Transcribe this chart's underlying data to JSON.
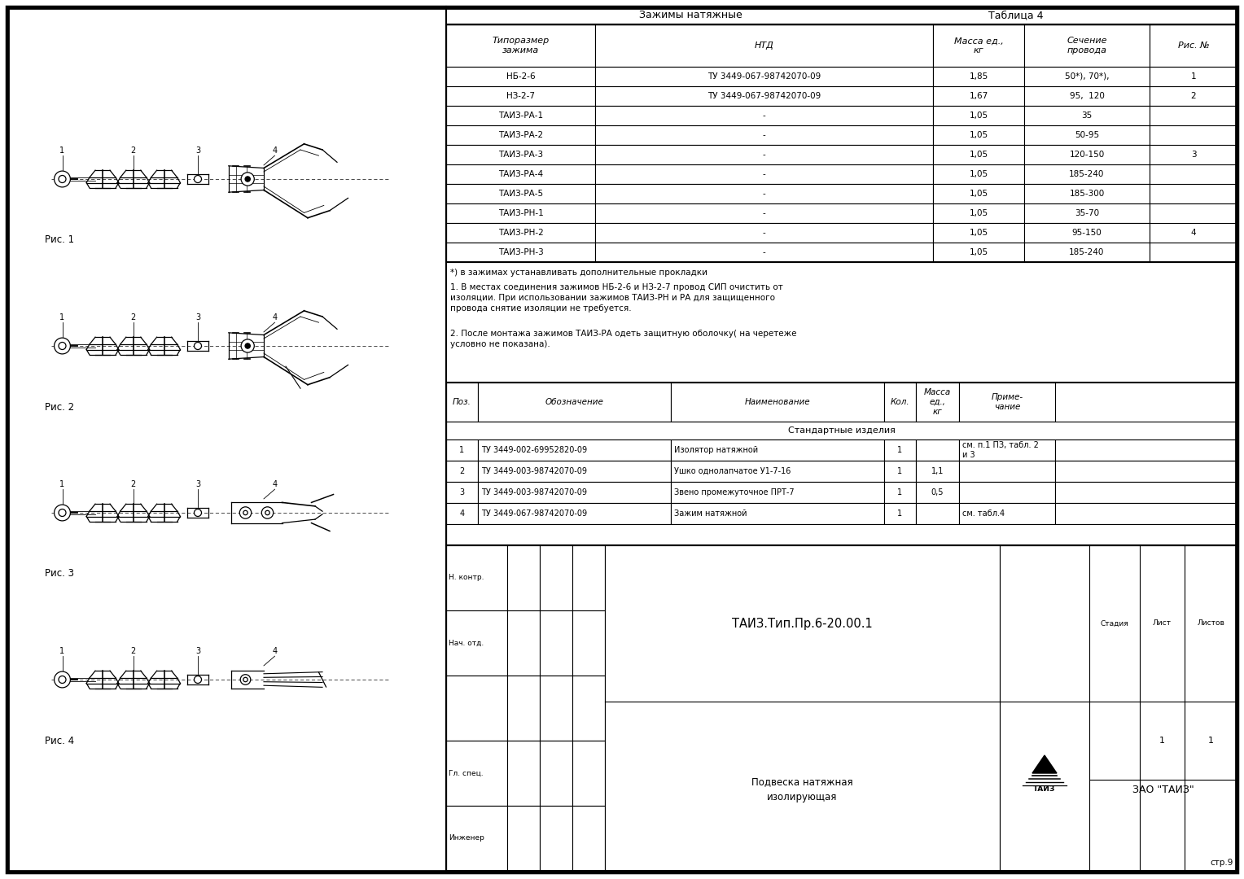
{
  "title1": "Зажимы натяжные",
  "title2": "Таблица 4",
  "table1_headers": [
    "Типоразмер\nзажима",
    "НТД",
    "Масса ед.,\nкг",
    "Сечение\nпровода",
    "Рис. №"
  ],
  "table1_rows": [
    [
      "НБ-2-6",
      "ТУ 3449-067-98742070-09",
      "1,85",
      "50*), 70*),\n95,  120",
      "1\n2"
    ],
    [
      "ТАИЗ-РА-1",
      "-",
      "1,05",
      "35",
      ""
    ],
    [
      "ТАИЗ-РА-2",
      "-",
      "1,05",
      "50-95",
      ""
    ],
    [
      "ТАИЗ-РА-3",
      "-",
      "1,05",
      "120-150",
      "3"
    ],
    [
      "ТАИЗ-РА-4",
      "-",
      "1,05",
      "185-240",
      ""
    ],
    [
      "ТАИЗ-РА-5",
      "-",
      "1,05",
      "185-300",
      ""
    ],
    [
      "ТАИЗ-РН-1",
      "-",
      "1,05",
      "35-70",
      ""
    ],
    [
      "ТАИЗ-РН-2",
      "-",
      "1,05",
      "95-150",
      "4"
    ],
    [
      "ТАИЗ-РН-3",
      "-",
      "1,05",
      "185-240",
      ""
    ]
  ],
  "note_star": "*) в зажимах устанавливать дополнительные прокладки",
  "note1": "1. В местах соединения зажимов НБ-2-6 и НЗ-2-7 провод СИП очистить от\nизоляции. При использовании зажимов ТАИЗ-РН и РА для защищенного\nпровода снятие изоляции не требуется.",
  "note2": "2. После монтажа зажимов ТАИЗ-РА одеть защитную оболочку( на черетеже\nусловно не показана).",
  "table2_headers": [
    "Поз.",
    "Обозначение",
    "Наименование",
    "Кол.",
    "Масса\nед.,\nкг",
    "Приме-\nчание"
  ],
  "table2_section": "Стандартные изделия",
  "table2_rows": [
    [
      "1",
      "ТУ 3449-002-69952820-09",
      "Изолятор натяжной",
      "1",
      "",
      "см. п.1 ПЗ, табл. 2\nи 3"
    ],
    [
      "2",
      "ТУ 3449-003-98742070-09",
      "Ушко однолапчатое У1-7-16",
      "1",
      "1,1",
      ""
    ],
    [
      "3",
      "ТУ 3449-003-98742070-09",
      "Звено промежуточное ПРТ-7",
      "1",
      "0,5",
      ""
    ],
    [
      "4",
      "ТУ 3449-067-98742070-09",
      "Зажим натяжной",
      "1",
      "",
      "см. табл.4"
    ]
  ],
  "stamp_code": "ТАИЗ.Тип.Пр.6-20.00.1",
  "stamp_title1": "Подвеска натяжная",
  "stamp_title2": "изолирующая",
  "stamp_company": "ЗАО \"ТАИЗ\"",
  "stamp_stage": "Стадия",
  "stamp_sheet": "Лист",
  "stamp_sheets": "Листов",
  "stamp_sheet_val": "1",
  "stamp_sheets_val": "1",
  "stamp_nkontr": "Н. контр.",
  "stamp_nach": "Нач. отд.",
  "stamp_gl_spec": "Гл. спец.",
  "stamp_inzh": "Инженер",
  "page_num": "стр.9",
  "fig_labels": [
    "Рис. 1",
    "Рис. 2",
    "Рис. 3",
    "Рис. 4"
  ],
  "fig_num_labels": [
    "1",
    "2",
    "3",
    "4"
  ],
  "part_labels": [
    "1",
    "2",
    "3",
    "4"
  ]
}
